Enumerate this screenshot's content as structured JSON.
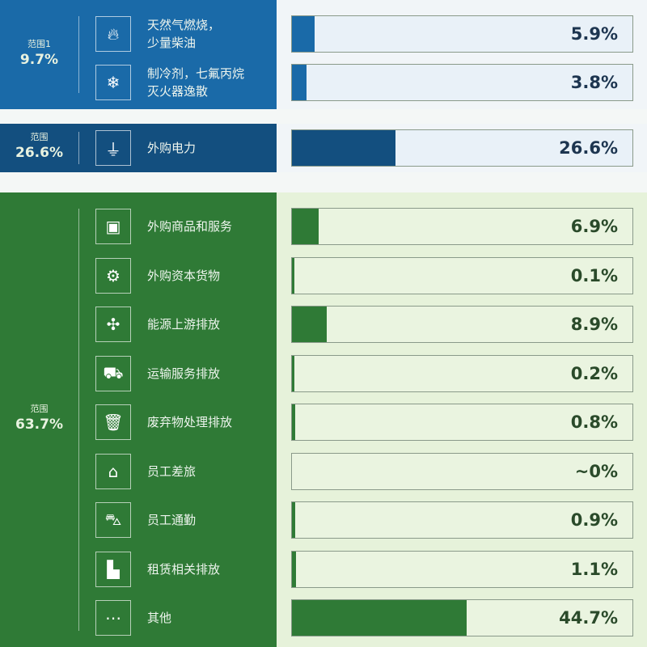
{
  "colors": {
    "scope1": "#1a6aa8",
    "scope2": "#134f7f",
    "scope3": "#2f7a36",
    "scope1_bar_bg": "#e9f1f8",
    "scope3_bar_bg": "#eaf4e0",
    "scope3_panel": "#e6f2da"
  },
  "chart_data": {
    "type": "bar",
    "groups": [
      {
        "scope_label": "范围1",
        "scope_value": "9.7%",
        "items": [
          {
            "label": "天然气燃烧，\n少量柴油",
            "value": 5.9,
            "value_text": "5.9%",
            "icon": "flame-icon"
          },
          {
            "label": "制冷剂，七氟丙烷\n灭火器逸散",
            "value": 3.8,
            "value_text": "3.8%",
            "icon": "snowflake-icon"
          }
        ]
      },
      {
        "scope_label": "范围",
        "scope_value": "26.6%",
        "items": [
          {
            "label": "外购电力",
            "value": 26.6,
            "value_text": "26.6%",
            "icon": "plug-icon"
          }
        ]
      },
      {
        "scope_label": "范围",
        "scope_value": "63.7%",
        "items": [
          {
            "label": "外购商品和服务",
            "value": 6.9,
            "value_text": "6.9%",
            "icon": "box-icon"
          },
          {
            "label": "外购资本货物",
            "value": 0.1,
            "value_text": "0.1%",
            "icon": "gears-icon"
          },
          {
            "label": "能源上游排放",
            "value": 8.9,
            "value_text": "8.9%",
            "icon": "wind-turbine-icon"
          },
          {
            "label": "运输服务排放",
            "value": 0.2,
            "value_text": "0.2%",
            "icon": "truck-icon"
          },
          {
            "label": "废弃物处理排放",
            "value": 0.8,
            "value_text": "0.8%",
            "icon": "trash-icon"
          },
          {
            "label": "员工差旅",
            "value": 0,
            "value_text": "~0%",
            "icon": "luggage-icon"
          },
          {
            "label": "员工通勤",
            "value": 0.9,
            "value_text": "0.9%",
            "icon": "car-icon"
          },
          {
            "label": "租赁相关排放",
            "value": 1.1,
            "value_text": "1.1%",
            "icon": "building-icon"
          },
          {
            "label": "其他",
            "value": 44.7,
            "value_text": "44.7%",
            "icon": "more-icon"
          }
        ]
      }
    ],
    "xlim": [
      0,
      87
    ]
  }
}
